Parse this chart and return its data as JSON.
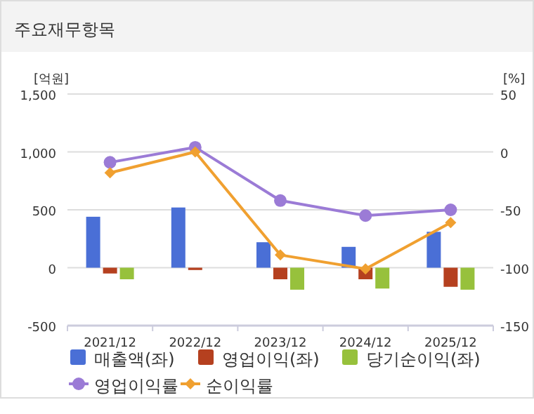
{
  "chart_data": {
    "type": "bar",
    "title": "주요재무항목",
    "ylabel": "[억원]",
    "y2label": "[%]",
    "categories": [
      "2021/12",
      "2022/12",
      "2023/12",
      "2024/12",
      "2025/12"
    ],
    "series": [
      {
        "name": "매출액(좌)",
        "color": "#4a6fd6",
        "values": [
          440,
          520,
          220,
          180,
          310
        ]
      },
      {
        "name": "영업이익(좌)",
        "color": "#b5401f",
        "values": [
          -50,
          -20,
          -100,
          -100,
          -165
        ]
      },
      {
        "name": "당기순이익(좌)",
        "color": "#97c13c",
        "values": [
          -100,
          0,
          -190,
          -180,
          -190
        ]
      },
      {
        "name": "영업이익률",
        "type": "line",
        "axis": "y2",
        "marker": "circle",
        "color": "#9b7bd6",
        "values": [
          -9,
          4,
          -42,
          -55,
          -50
        ]
      },
      {
        "name": "순이익률",
        "type": "line",
        "axis": "y2",
        "marker": "diamond",
        "color": "#f0a030",
        "values": [
          -18,
          0,
          -89,
          -101,
          -61
        ]
      }
    ],
    "ylim": [
      -500,
      1500
    ],
    "yticks": [
      -500,
      0,
      {
        "value": 500,
        "label": "500"
      },
      {
        "value": 1000,
        "label": "1,000"
      },
      {
        "value": 1500,
        "label": "1,500"
      }
    ],
    "y2lim": [
      -150,
      50
    ],
    "y2ticks": [
      -150,
      -100,
      -50,
      0,
      50
    ],
    "grid": "y",
    "legend": "bottom"
  }
}
